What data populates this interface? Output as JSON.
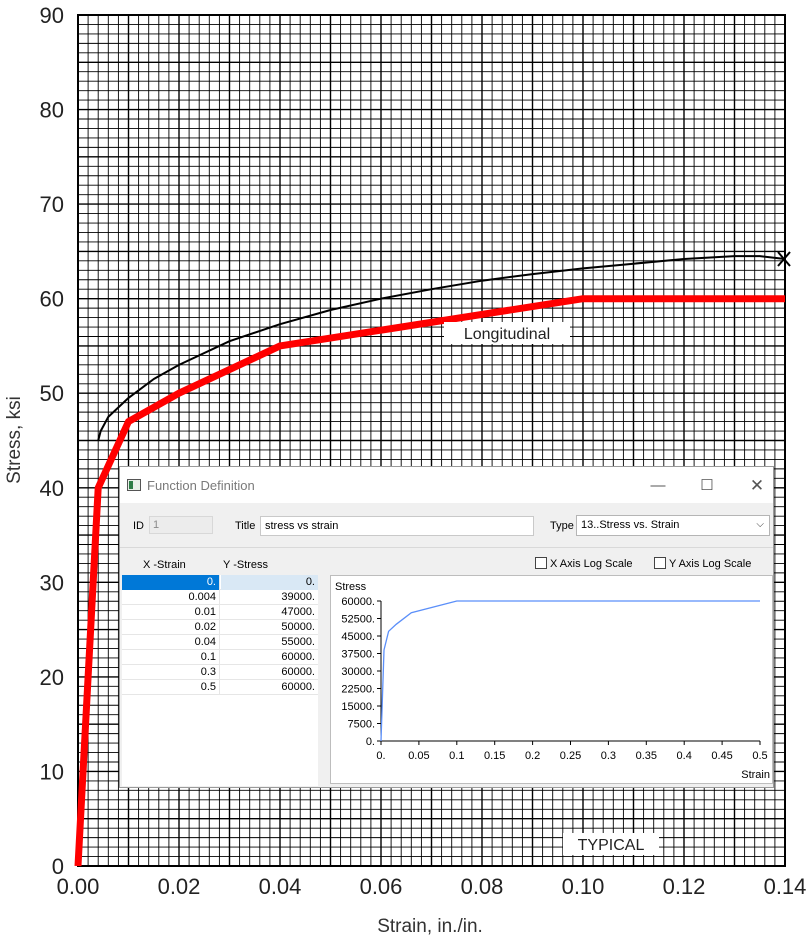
{
  "background_chart": {
    "chart_data": {
      "type": "line",
      "xlabel": "Strain, in./in.",
      "ylabel": "Stress, ksi",
      "xlim": [
        0,
        0.14
      ],
      "ylim": [
        0,
        90
      ],
      "x_ticks": [
        "0.00",
        "0.02",
        "0.04",
        "0.06",
        "0.08",
        "0.10",
        "0.12",
        "0.14"
      ],
      "y_ticks": [
        "0",
        "10",
        "20",
        "30",
        "40",
        "50",
        "60",
        "70",
        "80",
        "90"
      ],
      "grid": true,
      "series": [
        {
          "name": "",
          "color": "#000000",
          "x": [
            0.004,
            0.0045,
            0.006,
            0.008,
            0.01,
            0.015,
            0.02,
            0.03,
            0.04,
            0.05,
            0.06,
            0.07,
            0.08,
            0.09,
            0.1,
            0.11,
            0.12,
            0.13,
            0.135,
            0.14
          ],
          "y": [
            45,
            46,
            47.5,
            48.5,
            49.5,
            51.5,
            53,
            55.5,
            57.3,
            58.8,
            60,
            61,
            61.9,
            62.6,
            63.2,
            63.7,
            64.2,
            64.5,
            64.5,
            64.2
          ]
        },
        {
          "name": "Longitudinal",
          "color": "#ff0000",
          "x": [
            0,
            0.004,
            0.01,
            0.02,
            0.04,
            0.1,
            0.14
          ],
          "y": [
            0,
            40,
            47,
            50,
            55,
            60,
            60
          ]
        }
      ],
      "annotations": [
        "Longitudinal",
        "TYPICAL"
      ]
    }
  },
  "dialog": {
    "title": "Function Definition",
    "min_glyph": "—",
    "max_glyph": "☐",
    "close_glyph": "✕",
    "id_label": "ID",
    "id_value": "1",
    "title_label": "Title",
    "title_value": "stress vs strain",
    "type_label": "Type",
    "type_value": "13..Stress vs. Strain",
    "x_column": "X -Strain",
    "y_column": "Y -Stress",
    "x_log_label": "X Axis Log Scale",
    "y_log_label": "Y Axis Log Scale",
    "x_log_checked": false,
    "y_log_checked": false,
    "rows": [
      {
        "x": "0.",
        "y": "0."
      },
      {
        "x": "0.004",
        "y": "39000."
      },
      {
        "x": "0.01",
        "y": "47000."
      },
      {
        "x": "0.02",
        "y": "50000."
      },
      {
        "x": "0.04",
        "y": "55000."
      },
      {
        "x": "0.1",
        "y": "60000."
      },
      {
        "x": "0.3",
        "y": "60000."
      },
      {
        "x": "0.5",
        "y": "60000."
      }
    ],
    "chart_data": {
      "type": "line",
      "ylabel": "Stress",
      "xlabel": "Strain",
      "xlim": [
        0,
        0.5
      ],
      "ylim": [
        0,
        60000
      ],
      "x_ticks": [
        "0.",
        "0.05",
        "0.1",
        "0.15",
        "0.2",
        "0.25",
        "0.3",
        "0.35",
        "0.4",
        "0.45",
        "0.5"
      ],
      "y_ticks": [
        "0.",
        "7500.",
        "15000.",
        "22500.",
        "30000.",
        "37500.",
        "45000.",
        "52500.",
        "60000."
      ],
      "color": "#5b8ff9",
      "x": [
        0,
        0.004,
        0.01,
        0.02,
        0.04,
        0.1,
        0.3,
        0.5
      ],
      "y": [
        0,
        39000,
        47000,
        50000,
        55000,
        60000,
        60000,
        60000
      ]
    }
  }
}
